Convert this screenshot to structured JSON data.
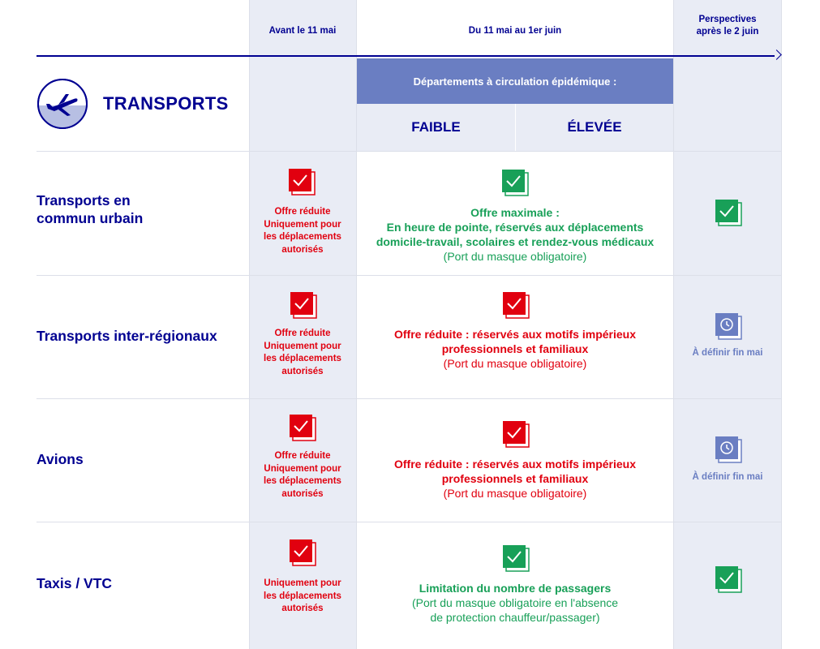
{
  "colors": {
    "navy": "#000091",
    "red": "#e1000f",
    "green": "#18a058",
    "band": "#6a7ec2",
    "shade": "#e9ecf5"
  },
  "header": {
    "col_before": "Avant le 11 mai",
    "col_during": "Du 11 mai au 1er juin",
    "col_after_1": "Perspectives",
    "col_after_2": "après le 2 juin",
    "dept_band": "Départements à circulation épidémique :",
    "low": "FAIBLE",
    "high": "ÉLEVÉE"
  },
  "section": {
    "title": "TRANSPORTS",
    "icon": "airplane-icon"
  },
  "rows": [
    {
      "label_1": "Transports en",
      "label_2": "commun urbain",
      "before": [
        "Offre réduite",
        "Uniquement pour",
        "les déplacements",
        "autorisés"
      ],
      "before_icon": "red-check-icon",
      "during_icon": "green-check-icon",
      "during": [
        "Offre maximale :",
        "En heure de pointe, réservés aux déplacements",
        "domicile-travail, scolaires et rendez-vous médicaux"
      ],
      "during_note": "(Port du masque obligatoire)",
      "after_icon": "green-check-icon"
    },
    {
      "label_1": "Transports inter-régionaux",
      "before": [
        "Offre réduite",
        "Uniquement pour",
        "les déplacements",
        "autorisés"
      ],
      "before_icon": "red-check-icon",
      "during_icon": "red-check-icon",
      "during": [
        "Offre réduite : réservés aux motifs impérieux",
        "professionnels et familiaux"
      ],
      "during_note": "(Port du masque obligatoire)",
      "after_icon": "clock-icon",
      "after_text": "À définir fin mai"
    },
    {
      "label_1": "Avions",
      "before": [
        "Offre réduite",
        "Uniquement pour",
        "les déplacements",
        "autorisés"
      ],
      "before_icon": "red-check-icon",
      "during_icon": "red-check-icon",
      "during": [
        "Offre réduite : réservés aux motifs impérieux",
        "professionnels et familiaux"
      ],
      "during_note": "(Port du masque obligatoire)",
      "after_icon": "clock-icon",
      "after_text": "À définir fin mai"
    },
    {
      "label_1": "Taxis / VTC",
      "before": [
        "Uniquement pour",
        "les déplacements",
        "autorisés"
      ],
      "before_icon": "red-check-icon",
      "during_icon": "green-check-icon",
      "during": [
        "Limitation du nombre de passagers"
      ],
      "during_note": "(Port du masque obligatoire en l'absence",
      "during_note_2": "de protection chauffeur/passager)",
      "after_icon": "green-check-icon"
    }
  ]
}
